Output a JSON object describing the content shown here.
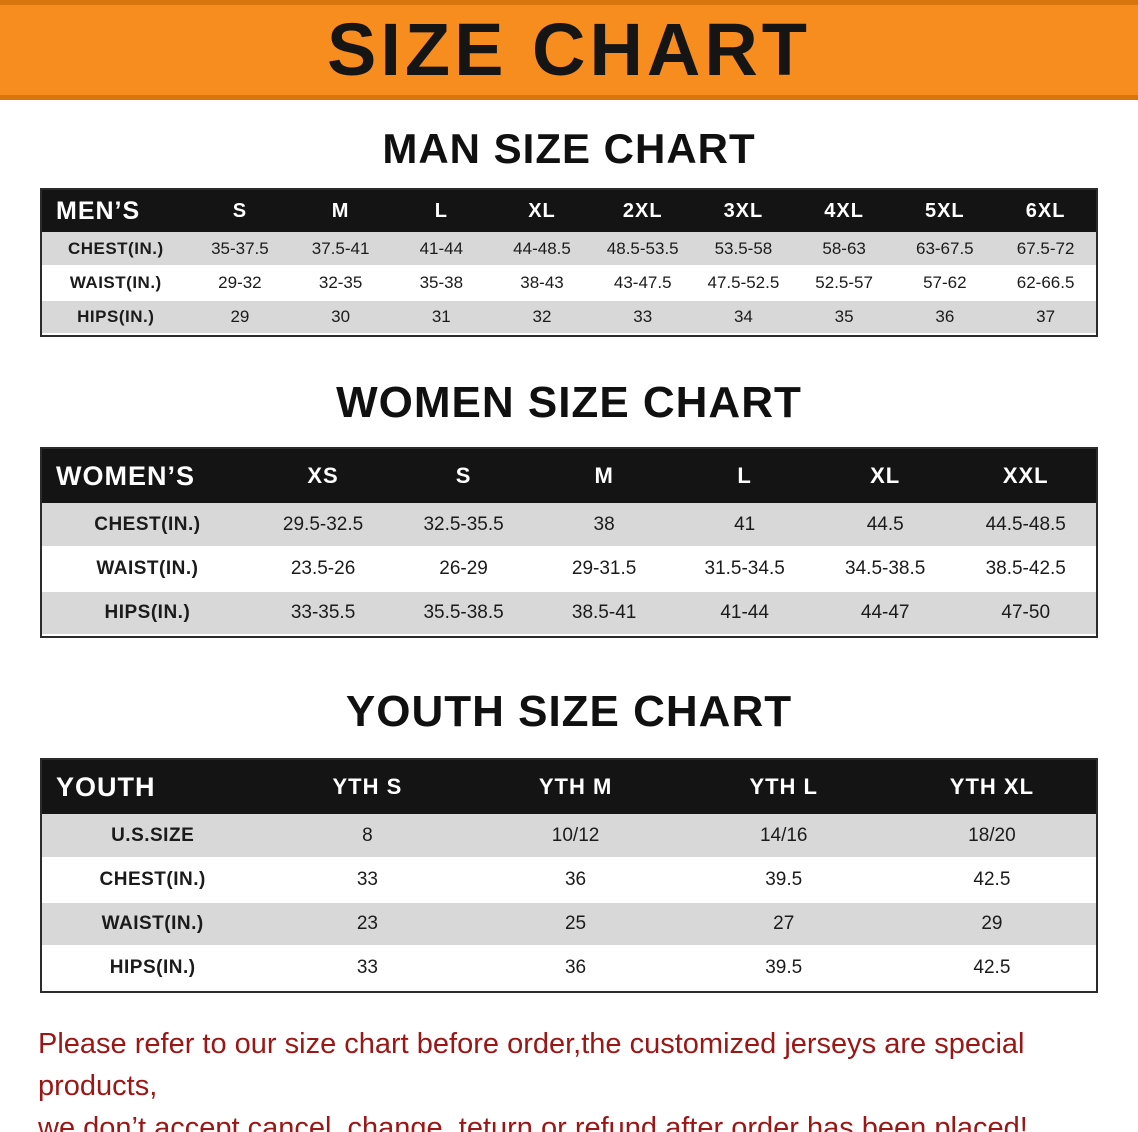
{
  "banner": {
    "title": "SIZE CHART",
    "bg_color": "#f78c1f"
  },
  "charts": [
    {
      "heading": "MAN SIZE CHART",
      "columns": [
        "MEN’S",
        "S",
        "M",
        "L",
        "XL",
        "2XL",
        "3XL",
        "4XL",
        "5XL",
        "6XL"
      ],
      "rows": [
        {
          "label": "CHEST(IN.)",
          "cells": [
            "35-37.5",
            "37.5-41",
            "41-44",
            "44-48.5",
            "48.5-53.5",
            "53.5-58",
            "58-63",
            "63-67.5",
            "67.5-72"
          ]
        },
        {
          "label": "WAIST(IN.)",
          "cells": [
            "29-32",
            "32-35",
            "35-38",
            "38-43",
            "43-47.5",
            "47.5-52.5",
            "52.5-57",
            "57-62",
            "62-66.5"
          ]
        },
        {
          "label": "HIPS(IN.)",
          "cells": [
            "29",
            "30",
            "31",
            "32",
            "33",
            "34",
            "35",
            "36",
            "37"
          ]
        }
      ]
    },
    {
      "heading": "WOMEN SIZE CHART",
      "columns": [
        "WOMEN’S",
        "XS",
        "S",
        "M",
        "L",
        "XL",
        "XXL"
      ],
      "rows": [
        {
          "label": "CHEST(IN.)",
          "cells": [
            "29.5-32.5",
            "32.5-35.5",
            "38",
            "41",
            "44.5",
            "44.5-48.5"
          ]
        },
        {
          "label": "WAIST(IN.)",
          "cells": [
            "23.5-26",
            "26-29",
            "29-31.5",
            "31.5-34.5",
            "34.5-38.5",
            "38.5-42.5"
          ]
        },
        {
          "label": "HIPS(IN.)",
          "cells": [
            "33-35.5",
            "35.5-38.5",
            "38.5-41",
            "41-44",
            "44-47",
            "47-50"
          ]
        }
      ]
    },
    {
      "heading": "YOUTH SIZE CHART",
      "columns": [
        "YOUTH",
        "YTH S",
        "YTH M",
        "YTH L",
        "YTH XL"
      ],
      "rows": [
        {
          "label": "U.S.SIZE",
          "cells": [
            "8",
            "10/12",
            "14/16",
            "18/20"
          ]
        },
        {
          "label": "CHEST(IN.)",
          "cells": [
            "33",
            "36",
            "39.5",
            "42.5"
          ]
        },
        {
          "label": "WAIST(IN.)",
          "cells": [
            "23",
            "25",
            "27",
            "29"
          ]
        },
        {
          "label": "HIPS(IN.)",
          "cells": [
            "33",
            "36",
            "39.5",
            "42.5"
          ]
        }
      ]
    }
  ],
  "disclaimer": {
    "line1": "Please refer to our size chart before order,the customized jerseys are special products,",
    "line2": "we don’t accept cancel, change, teturn or refund after order has been placed!",
    "text_color": "#9c1616"
  }
}
